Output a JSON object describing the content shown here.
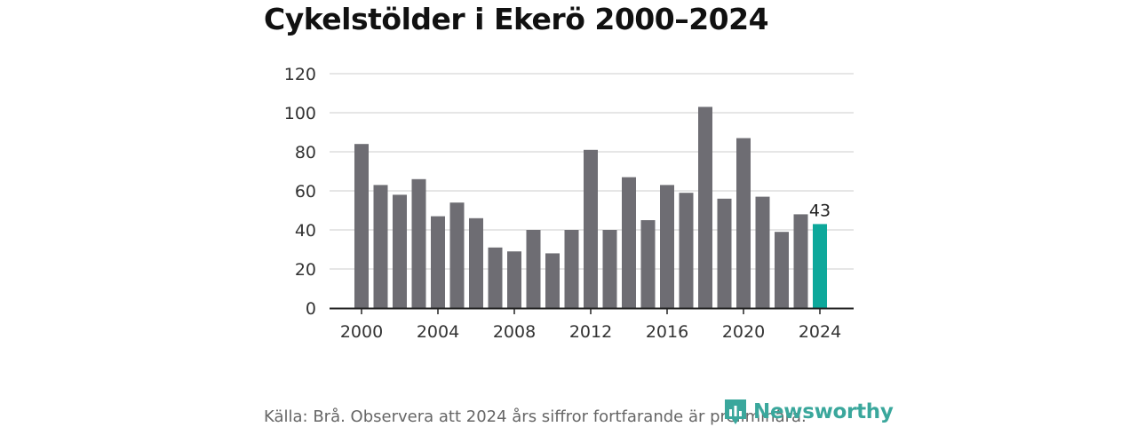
{
  "title": "Cykelstölder i Ekerö 2000–2024",
  "source": "Källa: Brå. Observera att 2024 års siffror fortfarande är preliminära.",
  "logo": {
    "text": "Newsworthy",
    "icon": "bar-chart-icon"
  },
  "colors": {
    "bar": "#6e6d73",
    "highlight": "#0ea89b",
    "grid": "#dddddd",
    "axis": "#222222"
  },
  "chart_data": {
    "type": "bar",
    "title": "Cykelstölder i Ekerö 2000–2024",
    "xlabel": "",
    "ylabel": "",
    "categories": [
      2000,
      2001,
      2002,
      2003,
      2004,
      2005,
      2006,
      2007,
      2008,
      2009,
      2010,
      2011,
      2012,
      2013,
      2014,
      2015,
      2016,
      2017,
      2018,
      2019,
      2020,
      2021,
      2022,
      2023,
      2024
    ],
    "values": [
      84,
      63,
      58,
      66,
      47,
      54,
      46,
      31,
      29,
      40,
      28,
      40,
      81,
      40,
      67,
      45,
      63,
      59,
      103,
      56,
      87,
      57,
      39,
      48,
      43
    ],
    "ylim": [
      0,
      120
    ],
    "yticks": [
      0,
      20,
      40,
      60,
      80,
      100,
      120
    ],
    "xticks": [
      2000,
      2004,
      2008,
      2012,
      2016,
      2020,
      2024
    ],
    "highlight": {
      "category": 2024,
      "label": "43"
    },
    "grid": true,
    "legend": "none"
  }
}
